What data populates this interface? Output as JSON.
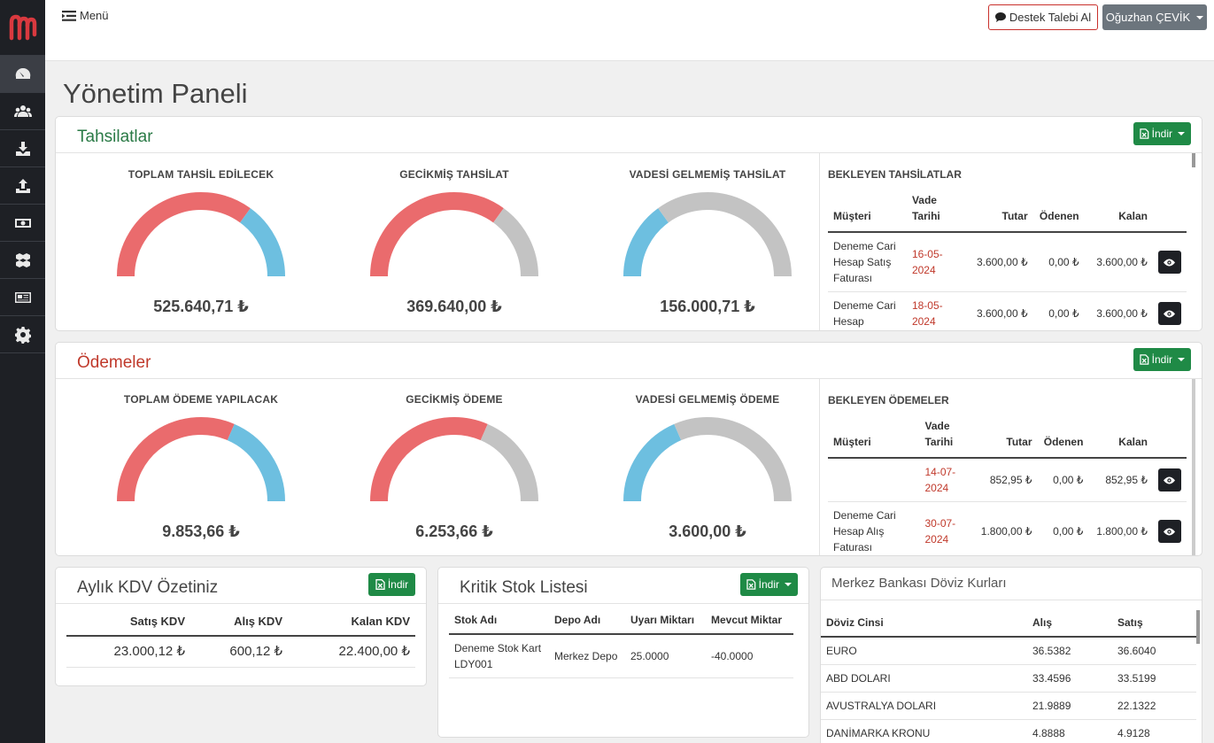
{
  "nav": [
    "dashboard-icon",
    "users-icon",
    "download-icon",
    "upload-icon",
    "money-icon",
    "boxes-icon",
    "newspaper-icon",
    "gear-icon"
  ],
  "topbar": {
    "menu_label": "Menü",
    "support_label": "Destek Talebi Al",
    "user_label": "Oğuzhan ÇEVİK"
  },
  "page_title": "Yönetim Paneli",
  "collections": {
    "title": "Tahsilatlar",
    "download_label": "İndir",
    "gauges": [
      {
        "label": "TOPLAM TAHSİL EDİLECEK",
        "value": "525.640,71 ₺",
        "fill": 0.7,
        "color1": "#ea6b6d",
        "color2": "#6dbfe0"
      },
      {
        "label": "GECİKMİŞ TAHSİLAT",
        "value": "369.640,00 ₺",
        "fill": 0.7,
        "color1": "#ea6b6d",
        "color2": "#c3c3c3"
      },
      {
        "label": "VADESİ GELMEMİŞ TAHSİLAT",
        "value": "156.000,71 ₺",
        "fill": 0.3,
        "color1": "#6dbfe0",
        "color2": "#c3c3c3"
      }
    ],
    "pending_title": "BEKLEYEN TAHSİLATLAR",
    "columns": [
      "Müşteri",
      "Vade Tarihi",
      "Tutar",
      "Ödenen",
      "Kalan"
    ],
    "rows": [
      {
        "customer": "Deneme Cari Hesap Satış Faturası",
        "date": "16-05-2024",
        "amount": "3.600,00 ₺",
        "paid": "0,00 ₺",
        "remaining": "3.600,00 ₺"
      },
      {
        "customer": "Deneme Cari Hesap",
        "date": "18-05-2024",
        "amount": "3.600,00 ₺",
        "paid": "0,00 ₺",
        "remaining": "3.600,00 ₺"
      }
    ]
  },
  "payments": {
    "title": "Ödemeler",
    "download_label": "İndir",
    "gauges": [
      {
        "label": "TOPLAM ÖDEME YAPILACAK",
        "value": "9.853,66 ₺",
        "fill": 0.63,
        "color1": "#ea6b6d",
        "color2": "#6dbfe0"
      },
      {
        "label": "GECİKMİŞ ÖDEME",
        "value": "6.253,66 ₺",
        "fill": 0.63,
        "color1": "#ea6b6d",
        "color2": "#c3c3c3"
      },
      {
        "label": "VADESİ GELMEMİŞ ÖDEME",
        "value": "3.600,00 ₺",
        "fill": 0.37,
        "color1": "#6dbfe0",
        "color2": "#c3c3c3"
      }
    ],
    "pending_title": "BEKLEYEN ÖDEMELER",
    "columns": [
      "Müşteri",
      "Vade Tarihi",
      "Tutar",
      "Ödenen",
      "Kalan"
    ],
    "rows": [
      {
        "customer": "",
        "date": "14-07-2024",
        "amount": "852,95 ₺",
        "paid": "0,00 ₺",
        "remaining": "852,95 ₺"
      },
      {
        "customer": "Deneme Cari Hesap Alış Faturası",
        "date": "30-07-2024",
        "amount": "1.800,00 ₺",
        "paid": "0,00 ₺",
        "remaining": "1.800,00 ₺"
      }
    ]
  },
  "kdv": {
    "title": "Aylık KDV Özetiniz",
    "download_label": "İndir",
    "columns": [
      "Satış KDV",
      "Alış KDV",
      "Kalan KDV"
    ],
    "values": [
      "23.000,12 ₺",
      "600,12 ₺",
      "22.400,00 ₺"
    ]
  },
  "stock": {
    "title": "Kritik Stok Listesi",
    "download_label": "İndir",
    "columns": [
      "Stok Adı",
      "Depo Adı",
      "Uyarı Miktarı",
      "Mevcut Miktar"
    ],
    "rows": [
      {
        "name": "Deneme Stok Kart LDY001",
        "depot": "Merkez Depo",
        "warning": "25.0000",
        "current": "-40.0000"
      }
    ]
  },
  "fx": {
    "title": "Merkez Bankası Döviz Kurları",
    "columns": [
      "Döviz Cinsi",
      "Alış",
      "Satış"
    ],
    "rows": [
      {
        "name": "EURO",
        "buy": "36.5382",
        "sell": "36.6040"
      },
      {
        "name": "ABD DOLARI",
        "buy": "33.4596",
        "sell": "33.5199"
      },
      {
        "name": "AVUSTRALYA DOLARI",
        "buy": "21.9889",
        "sell": "22.1322"
      },
      {
        "name": "DANİMARKA KRONU",
        "buy": "4.8888",
        "sell": "4.9128"
      }
    ]
  }
}
